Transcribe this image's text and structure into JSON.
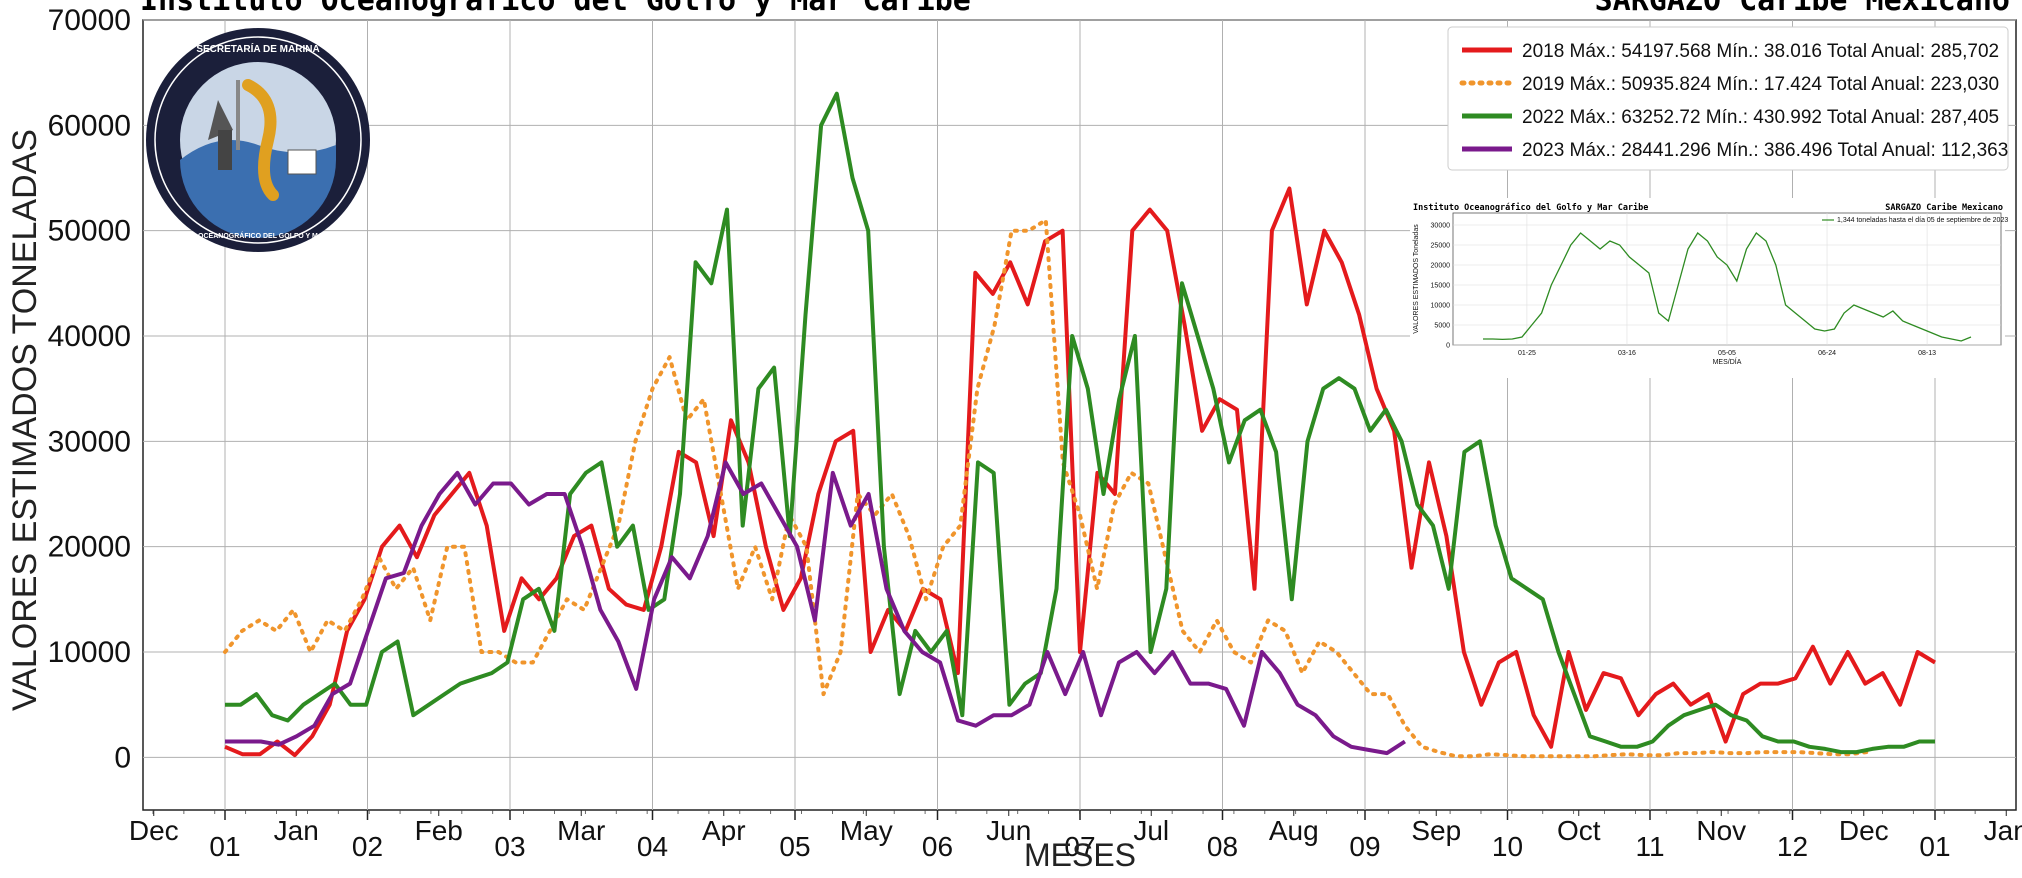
{
  "header": {
    "left_title": "Instituto Oceanográfico del Golfo y Mar Caribe",
    "right_title": "SARGAZO Caribe Mexicano"
  },
  "logo": {
    "ring_top_text": "SECRETARÍA DE MARINA",
    "ring_bottom_text": "INSTITUTO OCEANOGRÁFICO DEL GOLFO Y MAR CARIBE"
  },
  "chart_data": {
    "type": "line",
    "ylabel": "VALORES ESTIMADOS TONELADAS",
    "xlabel": "MESES",
    "ylim": [
      -5000,
      70000
    ],
    "yticks": [
      0,
      10000,
      20000,
      30000,
      40000,
      50000,
      60000,
      70000
    ],
    "x_major_ticks": [
      "01",
      "02",
      "03",
      "04",
      "05",
      "06",
      "07",
      "08",
      "09",
      "10",
      "11",
      "12",
      "01"
    ],
    "x_minor_ticks": [
      "Dec",
      "Jan",
      "Feb",
      "Mar",
      "Apr",
      "May",
      "Jun",
      "Jul",
      "Aug",
      "Sep",
      "Oct",
      "Nov",
      "Dec",
      "Jan"
    ],
    "grid": true,
    "legend_position": "top-right",
    "series": [
      {
        "name": "2018 Máx.: 54197.568 Mín.: 38.016   Total Anual: 285,702",
        "color": "#e41a1c",
        "dash": "solid",
        "values": [
          1000,
          300,
          300,
          1500,
          200,
          2000,
          5000,
          12000,
          15000,
          20000,
          22000,
          19000,
          23000,
          25000,
          27000,
          22000,
          12000,
          17000,
          15000,
          17000,
          21000,
          22000,
          16000,
          14500,
          14000,
          20000,
          29000,
          28000,
          21000,
          32000,
          28000,
          20000,
          14000,
          17000,
          25000,
          30000,
          31000,
          10000,
          14000,
          12000,
          16000,
          15000,
          8000,
          46000,
          44000,
          47000,
          43000,
          49000,
          50000,
          10000,
          27000,
          25000,
          50000,
          52000,
          50000,
          41000,
          31000,
          34000,
          33000,
          16000,
          50000,
          54000,
          43000,
          50000,
          47000,
          42000,
          35000,
          31000,
          18000,
          28000,
          21000,
          10000,
          5000,
          9000,
          10000,
          4000,
          1000,
          10000,
          4500,
          8000,
          7500,
          4000,
          6000,
          7000,
          5000,
          6000,
          1500,
          6000,
          7000,
          7000,
          7500,
          10500,
          7000,
          10000,
          7000,
          8000,
          5000,
          10000,
          9000
        ]
      },
      {
        "name": "2019 Máx.: 50935.824 Mín.: 17.424   Total Anual:  223,030",
        "color": "#f0952c",
        "dash": "dotted",
        "values": [
          10000,
          12000,
          13000,
          12000,
          14000,
          10000,
          13000,
          12000,
          15000,
          19000,
          16000,
          18000,
          13000,
          20000,
          20000,
          10000,
          10000,
          9000,
          9000,
          12000,
          15000,
          14000,
          18000,
          22000,
          30000,
          35000,
          38000,
          32000,
          34000,
          25000,
          16000,
          20000,
          15000,
          23000,
          20000,
          6000,
          10000,
          25000,
          23000,
          25000,
          21000,
          15000,
          20000,
          22000,
          35000,
          41000,
          50000,
          50000,
          51000,
          28000,
          23000,
          16000,
          24000,
          27000,
          26000,
          19000,
          12000,
          10000,
          13000,
          10000,
          9000,
          13000,
          12000,
          8000,
          11000,
          10000,
          8000,
          6000,
          6000,
          3000,
          1000,
          500,
          100,
          100,
          300,
          200,
          100,
          100,
          100,
          100,
          100,
          200,
          300,
          200,
          200,
          400,
          400,
          500,
          400,
          400,
          500,
          500,
          500,
          400,
          300,
          300,
          500
        ]
      },
      {
        "name": "2022 Máx.: 63252.72  Mín.:  430.992  Total Anual: 287,405",
        "color": "#2e8b22",
        "dash": "solid",
        "values": [
          5000,
          5000,
          6000,
          4000,
          3500,
          5000,
          6000,
          7000,
          5000,
          5000,
          10000,
          11000,
          4000,
          5000,
          6000,
          7000,
          7500,
          8000,
          9000,
          15000,
          16000,
          12000,
          25000,
          27000,
          28000,
          20000,
          22000,
          14000,
          15000,
          25000,
          47000,
          45000,
          52000,
          22000,
          35000,
          37000,
          21000,
          42000,
          60000,
          63000,
          55000,
          50000,
          20000,
          6000,
          12000,
          10000,
          12000,
          4000,
          28000,
          27000,
          5000,
          7000,
          8000,
          16000,
          40000,
          35000,
          25000,
          34000,
          40000,
          10000,
          16000,
          45000,
          40000,
          35000,
          28000,
          32000,
          33000,
          29000,
          15000,
          30000,
          35000,
          36000,
          35000,
          31000,
          33000,
          30000,
          24000,
          22000,
          16000,
          29000,
          30000,
          22000,
          17000,
          16000,
          15000,
          10000,
          6000,
          2000,
          1500,
          1000,
          1000,
          1500,
          3000,
          4000,
          4500,
          5000,
          4000,
          3500,
          2000,
          1500,
          1500,
          1000,
          800,
          500,
          500,
          800,
          1000,
          1000,
          1500,
          1500
        ]
      },
      {
        "name": "2023 Máx.: 28441.296 Mín.: 386.496 Total Anual: 112,363",
        "color": "#7a1a8c",
        "dash": "solid",
        "values": [
          1500,
          1500,
          1500,
          1200,
          2000,
          3000,
          6000,
          7000,
          12000,
          17000,
          17500,
          22000,
          25000,
          27000,
          24000,
          26000,
          26000,
          24000,
          25000,
          25000,
          20000,
          14000,
          11000,
          6500,
          15000,
          19000,
          17000,
          21000,
          28000,
          25000,
          26000,
          23000,
          20000,
          13000,
          27000,
          22000,
          25000,
          16000,
          12000,
          10000,
          9000,
          3500,
          3000,
          4000,
          4000,
          5000,
          10000,
          6000,
          10000,
          4000,
          9000,
          10000,
          8000,
          10000,
          7000,
          7000,
          6500,
          3000,
          10000,
          8000,
          5000,
          4000,
          2000,
          1000,
          700,
          400,
          1500
        ]
      }
    ]
  },
  "inset": {
    "left_title": "Instituto Oceanográfico del Golfo y Mar Caribe",
    "right_title": "SARGAZO Caribe Mexicano",
    "legend": "1,344 toneladas hasta el día 05 de septiembre de 2023",
    "ylabel": "VALORES ESTIMADOS Toneladas",
    "xlabel": "MES/DÍA",
    "xticks": [
      "01-25",
      "03-16",
      "05-05",
      "06-24",
      "08-13"
    ],
    "yticks": [
      "0",
      "5000",
      "10000",
      "15000",
      "20000",
      "25000",
      "30000"
    ],
    "ylim": [
      0,
      30000
    ],
    "color": "#2e8b22",
    "values": [
      1500,
      1500,
      1400,
      1500,
      2000,
      5000,
      8000,
      15000,
      20000,
      25000,
      28000,
      26000,
      24000,
      26000,
      25000,
      22000,
      20000,
      18000,
      8000,
      6000,
      15000,
      24000,
      28000,
      26000,
      22000,
      20000,
      16000,
      24000,
      28000,
      26000,
      20000,
      10000,
      8000,
      6000,
      4000,
      3500,
      4000,
      8000,
      10000,
      9000,
      8000,
      7000,
      8500,
      6000,
      5000,
      4000,
      3000,
      2000,
      1500,
      1000,
      2000
    ]
  }
}
